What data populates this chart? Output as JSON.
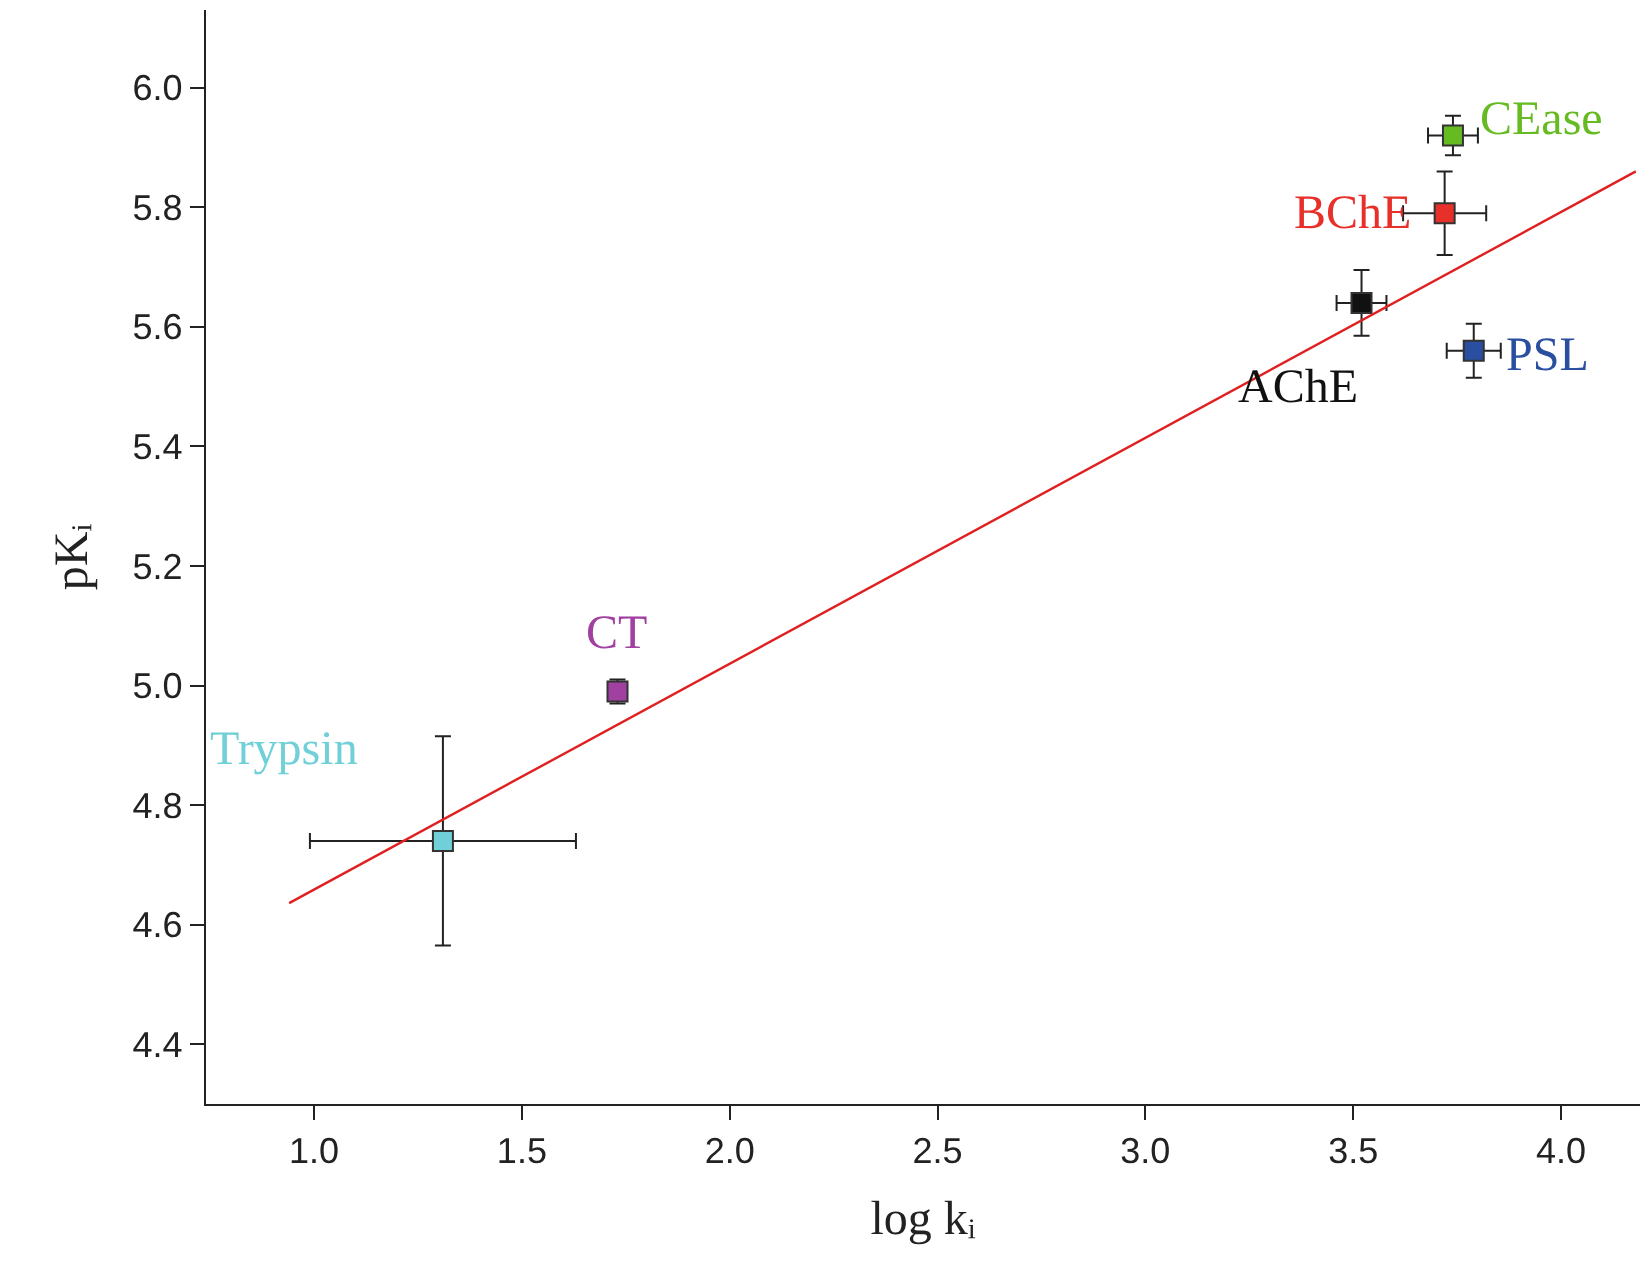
{
  "chart_data": {
    "type": "scatter",
    "xlabel": "log kᵢ",
    "ylabel": "pKᵢ",
    "xlim": [
      0.74,
      4.19
    ],
    "ylim": [
      4.3,
      6.13
    ],
    "xticks": [
      {
        "value": 1,
        "label": "1.0"
      },
      1.5,
      {
        "value": 2,
        "label": "2.0"
      },
      2.5,
      {
        "value": 3,
        "label": "3.0"
      },
      3.5,
      {
        "value": 4,
        "label": "4.0"
      }
    ],
    "yticks": [
      4.4,
      4.6,
      4.8,
      {
        "value": 5,
        "label": "5.0"
      },
      5.2,
      5.4,
      5.6,
      5.8,
      {
        "value": 6,
        "label": "6.0"
      }
    ],
    "legend": false,
    "marker": "square",
    "series": [
      {
        "name": "CEase",
        "color": "#66bb22",
        "x": [
          3.74
        ],
        "values": [
          5.92
        ],
        "errors": [
          0.033
        ],
        "xerrors": [
          0.06
        ]
      },
      {
        "name": "BChE",
        "color": "#e8302a",
        "x": [
          3.72
        ],
        "values": [
          5.79
        ],
        "errors": [
          0.07
        ],
        "xerrors": [
          0.1
        ]
      },
      {
        "name": "AChE",
        "color": "#111111",
        "x": [
          3.52
        ],
        "values": [
          5.64
        ],
        "errors": [
          0.055
        ],
        "xerrors": [
          0.06
        ]
      },
      {
        "name": "PSL",
        "color": "#2a4fa0",
        "x": [
          3.79
        ],
        "values": [
          5.56
        ],
        "errors": [
          0.045
        ],
        "xerrors": [
          0.065
        ]
      },
      {
        "name": "CT",
        "color": "#a040a0",
        "x": [
          1.73
        ],
        "values": [
          4.99
        ],
        "errors": [
          0.02
        ]
      },
      {
        "name": "Trypsin",
        "color": "#70d0d8",
        "x": [
          1.31
        ],
        "values": [
          4.74
        ],
        "errors": [
          0.175
        ],
        "xerrors": [
          0.32
        ]
      },
      {
        "type": "line",
        "color": "#e02020",
        "x": [
          0.94,
          4.18
        ],
        "values": [
          4.636,
          5.86
        ],
        "marker": "none"
      }
    ]
  }
}
